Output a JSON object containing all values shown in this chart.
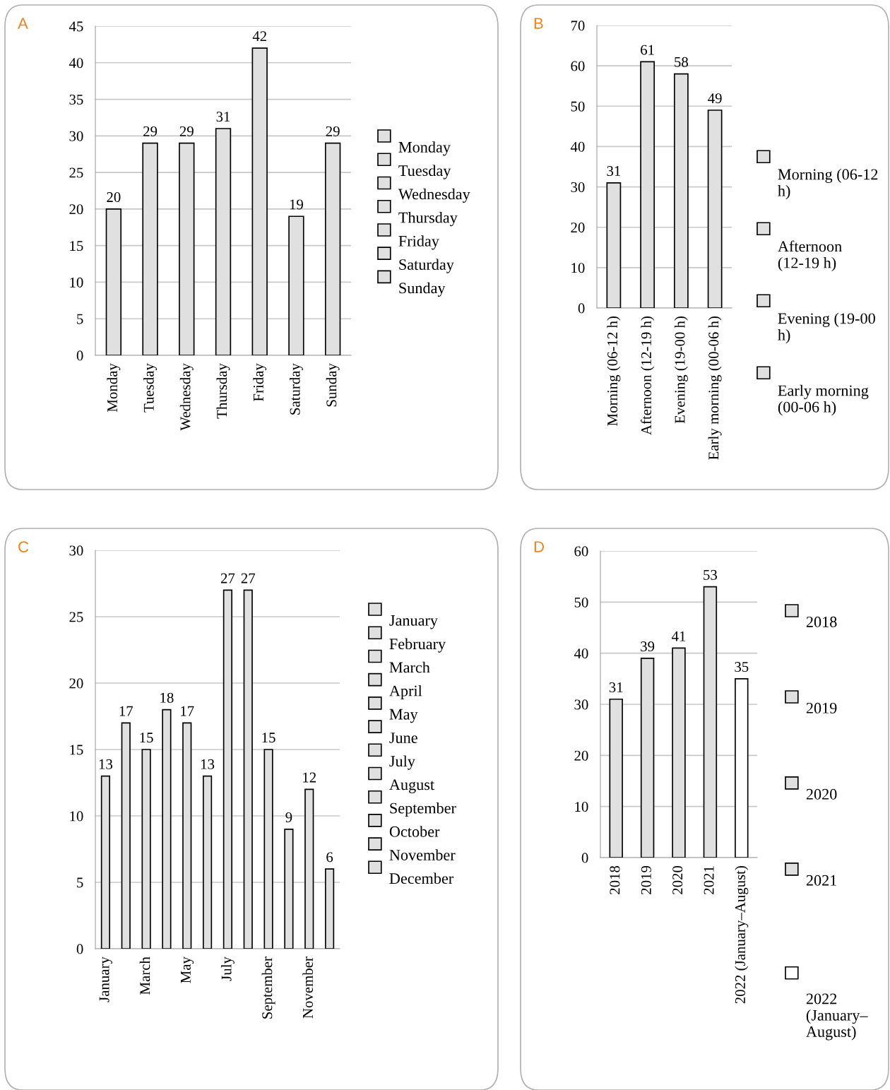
{
  "chart_data": [
    {
      "type": "bar",
      "title": "A",
      "categories": [
        "Monday",
        "Tuesday",
        "Wednesday",
        "Thursday",
        "Friday",
        "Saturday",
        "Sunday"
      ],
      "series": [
        {
          "name": "Monday",
          "color": "#e0e0e0",
          "values": [
            20,
            null,
            null,
            null,
            null,
            null,
            null
          ]
        },
        {
          "name": "Tuesday",
          "color": "#e0e0e0",
          "values": [
            null,
            29,
            null,
            null,
            null,
            null,
            null
          ]
        },
        {
          "name": "Wednesday",
          "color": "#e0e0e0",
          "values": [
            null,
            null,
            29,
            null,
            null,
            null,
            null
          ]
        },
        {
          "name": "Thursday",
          "color": "#e0e0e0",
          "values": [
            null,
            null,
            null,
            31,
            null,
            null,
            null
          ]
        },
        {
          "name": "Friday",
          "color": "#e0e0e0",
          "values": [
            null,
            null,
            null,
            null,
            42,
            null,
            null
          ]
        },
        {
          "name": "Saturday",
          "color": "#e0e0e0",
          "values": [
            null,
            null,
            null,
            null,
            null,
            19,
            null
          ]
        },
        {
          "name": "Sunday",
          "color": "#e0e0e0",
          "values": [
            null,
            null,
            null,
            null,
            null,
            null,
            29
          ]
        }
      ],
      "ylim": [
        0,
        45
      ],
      "yticks": [
        0,
        5,
        10,
        15,
        20,
        25,
        30,
        35,
        40,
        45
      ],
      "grid": "y",
      "legend": "right",
      "data_labels": true
    },
    {
      "type": "bar",
      "title": "B",
      "categories": [
        "Morning (06-12 h)",
        "Afternoon (12-19 h)",
        "Evening (19-00 h)",
        "Early morning (00-06 h)"
      ],
      "series": [
        {
          "name": "Morning (06-12 h)",
          "color": "#e0e0e0",
          "values": [
            31,
            null,
            null,
            null
          ]
        },
        {
          "name": "Afternoon (12-19 h)",
          "color": "#e0e0e0",
          "values": [
            null,
            61,
            null,
            null
          ]
        },
        {
          "name": "Evening (19-00 h)",
          "color": "#e0e0e0",
          "values": [
            null,
            null,
            58,
            null
          ]
        },
        {
          "name": "Early morning (00-06 h)",
          "color": "#e0e0e0",
          "values": [
            null,
            null,
            null,
            49
          ]
        }
      ],
      "ylim": [
        0,
        70
      ],
      "yticks": [
        0,
        10,
        20,
        30,
        40,
        50,
        60,
        70
      ],
      "grid": "y",
      "legend": "right",
      "data_labels": true
    },
    {
      "type": "bar",
      "title": "C",
      "categories": [
        "January",
        null,
        "March",
        null,
        "May",
        null,
        "July",
        null,
        "September",
        null,
        "November",
        null
      ],
      "series": [
        {
          "name": "January",
          "color": "#e0e0e0",
          "values": [
            13,
            null,
            null,
            null,
            null,
            null,
            null,
            null,
            null,
            null,
            null,
            null
          ]
        },
        {
          "name": "February",
          "color": "#e0e0e0",
          "values": [
            null,
            17,
            null,
            null,
            null,
            null,
            null,
            null,
            null,
            null,
            null,
            null
          ]
        },
        {
          "name": "March",
          "color": "#e0e0e0",
          "values": [
            null,
            null,
            15,
            null,
            null,
            null,
            null,
            null,
            null,
            null,
            null,
            null
          ]
        },
        {
          "name": "April",
          "color": "#e0e0e0",
          "values": [
            null,
            null,
            null,
            18,
            null,
            null,
            null,
            null,
            null,
            null,
            null,
            null
          ]
        },
        {
          "name": "May",
          "color": "#e0e0e0",
          "values": [
            null,
            null,
            null,
            null,
            17,
            null,
            null,
            null,
            null,
            null,
            null,
            null
          ]
        },
        {
          "name": "June",
          "color": "#e0e0e0",
          "values": [
            null,
            null,
            null,
            null,
            null,
            13,
            null,
            null,
            null,
            null,
            null,
            null
          ]
        },
        {
          "name": "July",
          "color": "#e0e0e0",
          "values": [
            null,
            null,
            null,
            null,
            null,
            null,
            27,
            null,
            null,
            null,
            null,
            null
          ]
        },
        {
          "name": "August",
          "color": "#e0e0e0",
          "values": [
            null,
            null,
            null,
            null,
            null,
            null,
            null,
            27,
            null,
            null,
            null,
            null
          ]
        },
        {
          "name": "September",
          "color": "#e0e0e0",
          "values": [
            null,
            null,
            null,
            null,
            null,
            null,
            null,
            null,
            15,
            null,
            null,
            null
          ]
        },
        {
          "name": "October",
          "color": "#e0e0e0",
          "values": [
            null,
            null,
            null,
            null,
            null,
            null,
            null,
            null,
            null,
            9,
            null,
            null
          ]
        },
        {
          "name": "November",
          "color": "#e0e0e0",
          "values": [
            null,
            null,
            null,
            null,
            null,
            null,
            null,
            null,
            null,
            null,
            12,
            null
          ]
        },
        {
          "name": "December",
          "color": "#e0e0e0",
          "values": [
            null,
            null,
            null,
            null,
            null,
            null,
            null,
            null,
            null,
            null,
            null,
            6
          ]
        }
      ],
      "ylim": [
        0,
        30
      ],
      "yticks": [
        0,
        5,
        10,
        15,
        20,
        25,
        30
      ],
      "grid": "y",
      "legend": "right",
      "data_labels": true
    },
    {
      "type": "bar",
      "title": "D",
      "categories": [
        "2018",
        "2019",
        "2020",
        "2021",
        "2022 (January–August)"
      ],
      "series": [
        {
          "name": "2018",
          "color": "#e0e0e0",
          "values": [
            31,
            null,
            null,
            null,
            null
          ]
        },
        {
          "name": "2019",
          "color": "#e0e0e0",
          "values": [
            null,
            39,
            null,
            null,
            null
          ]
        },
        {
          "name": "2020",
          "color": "#e0e0e0",
          "values": [
            null,
            null,
            41,
            null,
            null
          ]
        },
        {
          "name": "2021",
          "color": "#e0e0e0",
          "values": [
            null,
            null,
            null,
            53,
            null
          ]
        },
        {
          "name": "2022 (January–August)",
          "color": "#ffffff",
          "values": [
            null,
            null,
            null,
            null,
            35
          ]
        }
      ],
      "ylim": [
        0,
        60
      ],
      "yticks": [
        0,
        10,
        20,
        30,
        40,
        50,
        60
      ],
      "grid": "y",
      "legend": "right",
      "data_labels": true
    }
  ]
}
